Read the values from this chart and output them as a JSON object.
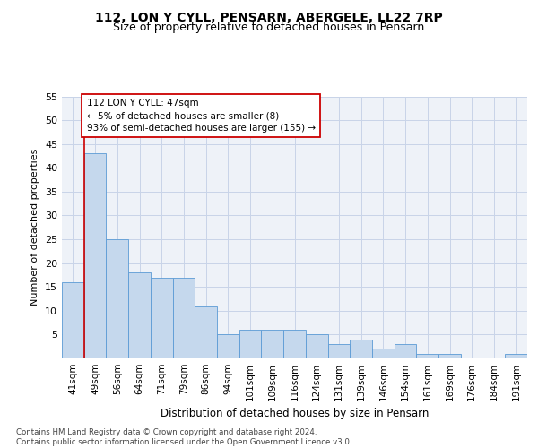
{
  "title1": "112, LON Y CYLL, PENSARN, ABERGELE, LL22 7RP",
  "title2": "Size of property relative to detached houses in Pensarn",
  "xlabel": "Distribution of detached houses by size in Pensarn",
  "ylabel": "Number of detached properties",
  "categories": [
    "41sqm",
    "49sqm",
    "56sqm",
    "64sqm",
    "71sqm",
    "79sqm",
    "86sqm",
    "94sqm",
    "101sqm",
    "109sqm",
    "116sqm",
    "124sqm",
    "131sqm",
    "139sqm",
    "146sqm",
    "154sqm",
    "161sqm",
    "169sqm",
    "176sqm",
    "184sqm",
    "191sqm"
  ],
  "values": [
    16,
    43,
    25,
    18,
    17,
    17,
    11,
    5,
    6,
    6,
    6,
    5,
    3,
    4,
    2,
    3,
    1,
    1,
    0,
    0,
    1
  ],
  "bar_color": "#c5d8ed",
  "bar_edge_color": "#5b9bd5",
  "annotation_line_color": "#cc0000",
  "annotation_box_text": "112 LON Y CYLL: 47sqm\n← 5% of detached houses are smaller (8)\n93% of semi-detached houses are larger (155) →",
  "annotation_box_color": "#ffffff",
  "annotation_box_edge_color": "#cc0000",
  "ylim": [
    0,
    55
  ],
  "yticks": [
    0,
    5,
    10,
    15,
    20,
    25,
    30,
    35,
    40,
    45,
    50,
    55
  ],
  "grid_color": "#c8d4e8",
  "footnote": "Contains HM Land Registry data © Crown copyright and database right 2024.\nContains public sector information licensed under the Open Government Licence v3.0.",
  "bg_color": "#eef2f8",
  "title1_fontsize": 10,
  "title2_fontsize": 9
}
